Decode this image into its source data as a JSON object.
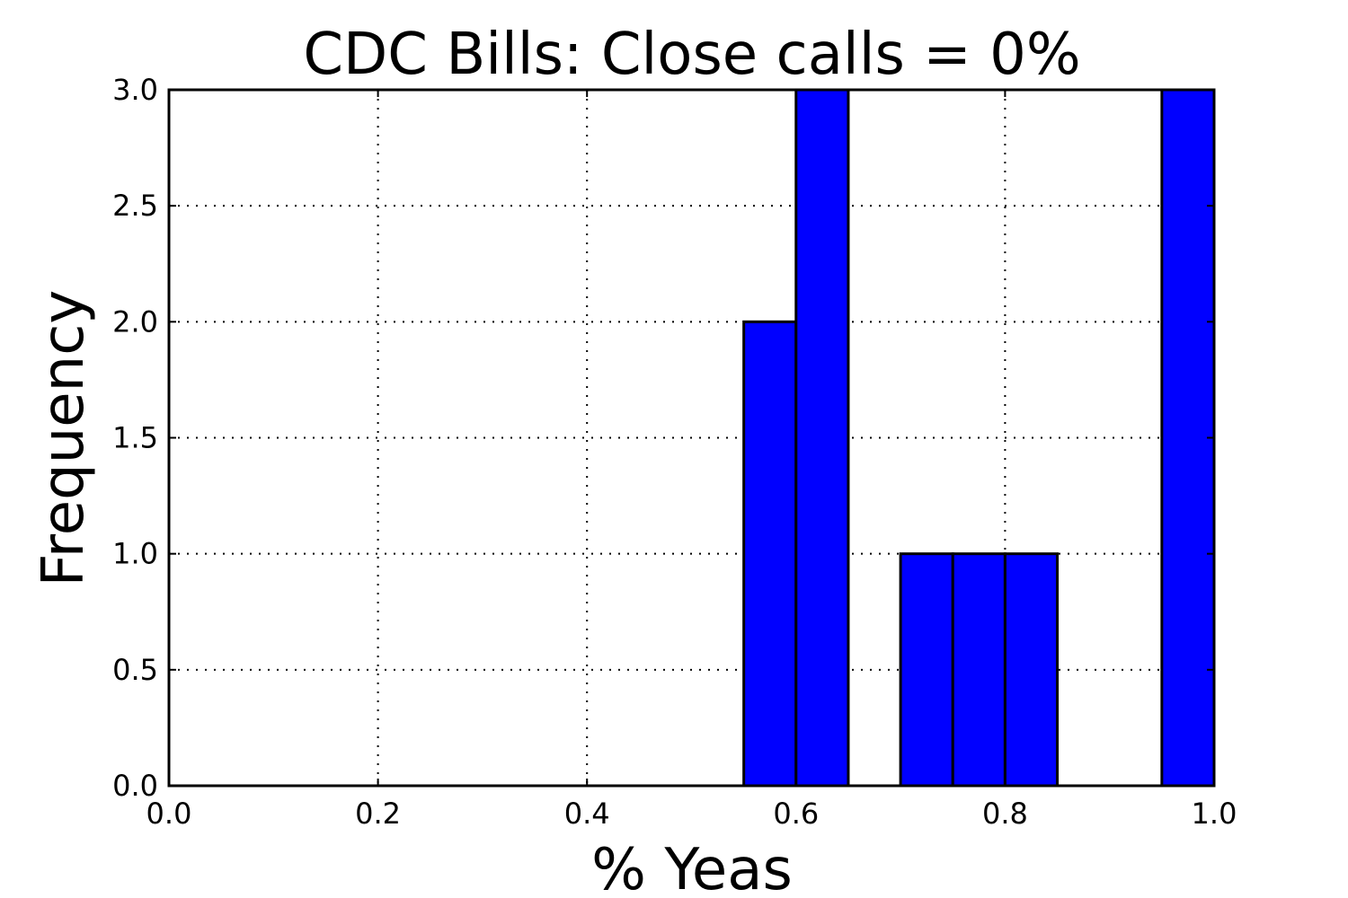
{
  "chart_data": {
    "type": "bar",
    "title": "CDC Bills: Close calls = 0%",
    "xlabel": "% Yeas",
    "ylabel": "Frequency",
    "xlim": [
      0.0,
      1.0
    ],
    "ylim": [
      0.0,
      3.0
    ],
    "xticks": [
      0.0,
      0.2,
      0.4,
      0.6,
      0.8,
      1.0
    ],
    "xtick_labels": [
      "0.0",
      "0.2",
      "0.4",
      "0.6",
      "0.8",
      "1.0"
    ],
    "yticks": [
      0.0,
      0.5,
      1.0,
      1.5,
      2.0,
      2.5,
      3.0
    ],
    "ytick_labels": [
      "0.0",
      "0.5",
      "1.0",
      "1.5",
      "2.0",
      "2.5",
      "3.0"
    ],
    "grid": true,
    "bar_color": "#0000ff",
    "bins": [
      {
        "x0": 0.0,
        "x1": 0.05,
        "count": 0
      },
      {
        "x0": 0.05,
        "x1": 0.1,
        "count": 0
      },
      {
        "x0": 0.1,
        "x1": 0.15,
        "count": 0
      },
      {
        "x0": 0.15,
        "x1": 0.2,
        "count": 0
      },
      {
        "x0": 0.2,
        "x1": 0.25,
        "count": 0
      },
      {
        "x0": 0.25,
        "x1": 0.3,
        "count": 0
      },
      {
        "x0": 0.3,
        "x1": 0.35,
        "count": 0
      },
      {
        "x0": 0.35,
        "x1": 0.4,
        "count": 0
      },
      {
        "x0": 0.4,
        "x1": 0.45,
        "count": 0
      },
      {
        "x0": 0.45,
        "x1": 0.5,
        "count": 0
      },
      {
        "x0": 0.5,
        "x1": 0.55,
        "count": 0
      },
      {
        "x0": 0.55,
        "x1": 0.6,
        "count": 2
      },
      {
        "x0": 0.6,
        "x1": 0.65,
        "count": 3
      },
      {
        "x0": 0.65,
        "x1": 0.7,
        "count": 0
      },
      {
        "x0": 0.7,
        "x1": 0.75,
        "count": 1
      },
      {
        "x0": 0.75,
        "x1": 0.8,
        "count": 1
      },
      {
        "x0": 0.8,
        "x1": 0.85,
        "count": 1
      },
      {
        "x0": 0.85,
        "x1": 0.9,
        "count": 0
      },
      {
        "x0": 0.9,
        "x1": 0.95,
        "count": 0
      },
      {
        "x0": 0.95,
        "x1": 1.0,
        "count": 3
      }
    ]
  }
}
